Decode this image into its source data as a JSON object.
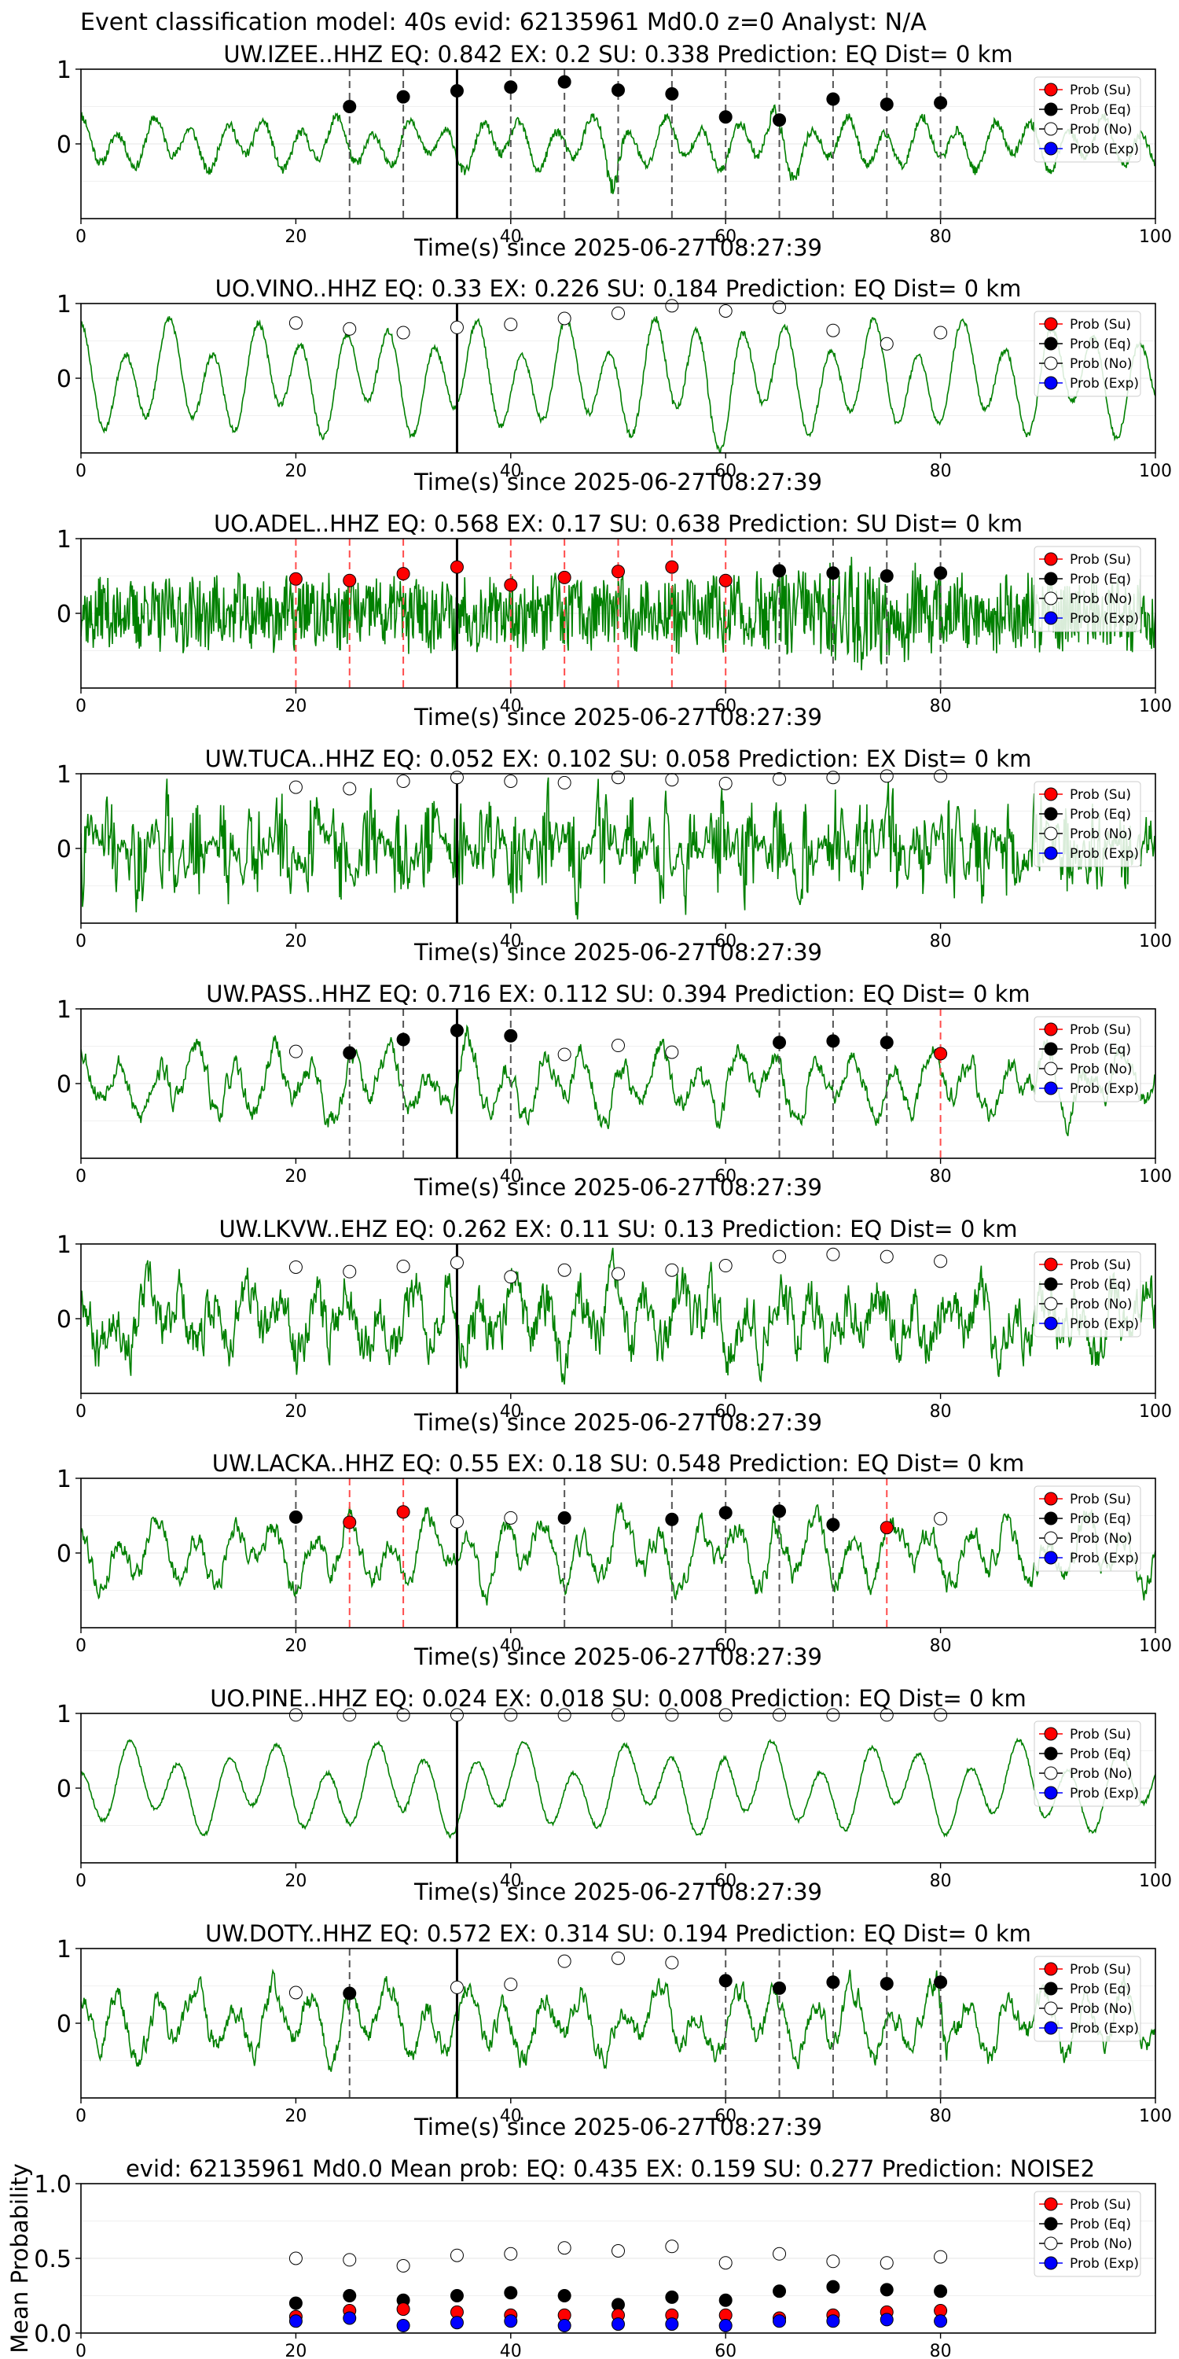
{
  "figure_title": "Event classification model: 40s evid: 62135961 Md0.0 z=0 Analyst: N/A",
  "colors": {
    "waveform": "#008000",
    "prob_su": "#ff0000",
    "prob_eq": "#000000",
    "prob_no": "#ffffff",
    "prob_exp": "#0000ff",
    "marker_eq_line": "#555555",
    "marker_su_line": "#ff4d4d",
    "event_line": "#000000"
  },
  "legend_entries": [
    "Prob (Su)",
    "Prob (Eq)",
    "Prob (No)",
    "Prob (Exp)"
  ],
  "chart_data": [
    {
      "type": "line",
      "title": "UW.IZEE..HHZ   EQ: 0.842  EX: 0.2  SU: 0.338   Prediction: EQ    Dist= 0 km",
      "xlabel": "Time(s) since 2025-06-27T08:27:39",
      "xlim": [
        0,
        100
      ],
      "ylim": [
        -1,
        1
      ],
      "xticks": [
        0,
        20,
        40,
        60,
        80,
        100
      ],
      "yticks": [
        0,
        1
      ],
      "event_time": 35,
      "waveform": {
        "seed": 11,
        "style": "lowfreq",
        "bursts": [
          [
            48,
            51,
            2.3
          ],
          [
            62,
            68,
            1.6
          ],
          [
            30,
            35,
            0.8
          ]
        ]
      },
      "series": [
        {
          "name": "Prob (Eq)",
          "x": [
            25,
            30,
            35,
            40,
            45,
            50,
            55,
            60,
            65,
            70,
            75,
            80
          ],
          "y": [
            0.5,
            0.63,
            0.71,
            0.76,
            0.83,
            0.72,
            0.67,
            0.36,
            0.32,
            0.6,
            0.53,
            0.55
          ]
        }
      ],
      "marker_lines": [
        {
          "x": 25,
          "cls": "EQ"
        },
        {
          "x": 30,
          "cls": "EQ"
        },
        {
          "x": 40,
          "cls": "EQ"
        },
        {
          "x": 45,
          "cls": "EQ"
        },
        {
          "x": 50,
          "cls": "EQ"
        },
        {
          "x": 55,
          "cls": "EQ"
        },
        {
          "x": 60,
          "cls": "EQ"
        },
        {
          "x": 65,
          "cls": "EQ"
        },
        {
          "x": 70,
          "cls": "EQ"
        },
        {
          "x": 75,
          "cls": "EQ"
        },
        {
          "x": 80,
          "cls": "EQ"
        }
      ]
    },
    {
      "type": "line",
      "title": "UO.VINO..HHZ   EQ: 0.33  EX: 0.226  SU: 0.184   Prediction: EQ    Dist= 0 km",
      "xlabel": "Time(s) since 2025-06-27T08:27:39",
      "xlim": [
        0,
        100
      ],
      "ylim": [
        -1,
        1
      ],
      "xticks": [
        0,
        20,
        40,
        60,
        80,
        100
      ],
      "yticks": [
        0,
        1
      ],
      "event_time": 35,
      "waveform": {
        "seed": 23,
        "style": "sine",
        "bursts": [
          [
            50,
            65,
            1.3
          ]
        ]
      },
      "series": [
        {
          "name": "Prob (No)",
          "x": [
            20,
            25,
            30,
            35,
            40,
            45,
            50,
            55,
            60,
            65,
            70,
            75,
            80
          ],
          "y": [
            0.74,
            0.66,
            0.61,
            0.68,
            0.72,
            0.8,
            0.87,
            0.97,
            0.9,
            0.95,
            0.64,
            0.46,
            0.61
          ]
        }
      ],
      "marker_lines": []
    },
    {
      "type": "line",
      "title": "UO.ADEL..HHZ   EQ: 0.568  EX: 0.17  SU: 0.638   Prediction: SU    Dist= 0 km",
      "xlabel": "Time(s) since 2025-06-27T08:27:39",
      "xlim": [
        0,
        100
      ],
      "ylim": [
        -1,
        1
      ],
      "xticks": [
        0,
        20,
        40,
        60,
        80,
        100
      ],
      "yticks": [
        0,
        1
      ],
      "event_time": 35,
      "waveform": {
        "seed": 37,
        "style": "noise",
        "bursts": [
          [
            62,
            82,
            1.6
          ]
        ]
      },
      "series": [
        {
          "name": "Prob (Su)",
          "x": [
            20,
            25,
            30,
            35,
            40,
            45,
            50,
            55,
            60
          ],
          "y": [
            0.46,
            0.44,
            0.53,
            0.62,
            0.38,
            0.48,
            0.56,
            0.62,
            0.44
          ]
        },
        {
          "name": "Prob (Eq)",
          "x": [
            65,
            70,
            75,
            80
          ],
          "y": [
            0.57,
            0.54,
            0.5,
            0.54
          ]
        }
      ],
      "marker_lines": [
        {
          "x": 20,
          "cls": "SU"
        },
        {
          "x": 25,
          "cls": "SU"
        },
        {
          "x": 30,
          "cls": "SU"
        },
        {
          "x": 35,
          "cls": "SU"
        },
        {
          "x": 40,
          "cls": "SU"
        },
        {
          "x": 45,
          "cls": "SU"
        },
        {
          "x": 50,
          "cls": "SU"
        },
        {
          "x": 55,
          "cls": "SU"
        },
        {
          "x": 60,
          "cls": "SU"
        },
        {
          "x": 65,
          "cls": "EQ"
        },
        {
          "x": 70,
          "cls": "EQ"
        },
        {
          "x": 75,
          "cls": "EQ"
        },
        {
          "x": 80,
          "cls": "EQ"
        }
      ]
    },
    {
      "type": "line",
      "title": "UW.TUCA..HHZ   EQ: 0.052  EX: 0.102  SU: 0.058   Prediction: EX    Dist= 0 km",
      "xlabel": "Time(s) since 2025-06-27T08:27:39",
      "xlim": [
        0,
        100
      ],
      "ylim": [
        -1,
        1
      ],
      "xticks": [
        0,
        20,
        40,
        60,
        80,
        100
      ],
      "yticks": [
        0,
        1
      ],
      "event_time": 35,
      "waveform": {
        "seed": 41,
        "style": "noise_heavy",
        "bursts": []
      },
      "series": [
        {
          "name": "Prob (No)",
          "x": [
            20,
            25,
            30,
            35,
            40,
            45,
            50,
            55,
            60,
            65,
            70,
            75,
            80
          ],
          "y": [
            0.82,
            0.8,
            0.9,
            0.95,
            0.9,
            0.88,
            0.95,
            0.92,
            0.87,
            0.93,
            0.95,
            0.97,
            0.97
          ]
        }
      ],
      "marker_lines": []
    },
    {
      "type": "line",
      "title": "UW.PASS..HHZ   EQ: 0.716  EX: 0.112  SU: 0.394   Prediction: EQ    Dist= 0 km",
      "xlabel": "Time(s) since 2025-06-27T08:27:39",
      "xlim": [
        0,
        100
      ],
      "ylim": [
        -1,
        1
      ],
      "xticks": [
        0,
        20,
        40,
        60,
        80,
        100
      ],
      "yticks": [
        0,
        1
      ],
      "event_time": 35,
      "waveform": {
        "seed": 53,
        "style": "mixed",
        "bursts": [
          [
            34,
            37,
            1.4
          ],
          [
            7,
            9,
            1.3
          ]
        ]
      },
      "series": [
        {
          "name": "Prob (No)",
          "x": [
            20,
            45,
            50,
            55
          ],
          "y": [
            0.43,
            0.39,
            0.51,
            0.42
          ]
        },
        {
          "name": "Prob (Eq)",
          "x": [
            25,
            30,
            35,
            40,
            65,
            70,
            75
          ],
          "y": [
            0.41,
            0.59,
            0.71,
            0.64,
            0.55,
            0.57,
            0.55
          ]
        },
        {
          "name": "Prob (Su)",
          "x": [
            80
          ],
          "y": [
            0.4
          ]
        }
      ],
      "marker_lines": [
        {
          "x": 25,
          "cls": "EQ"
        },
        {
          "x": 30,
          "cls": "EQ"
        },
        {
          "x": 35,
          "cls": "EQ"
        },
        {
          "x": 40,
          "cls": "EQ"
        },
        {
          "x": 65,
          "cls": "EQ"
        },
        {
          "x": 70,
          "cls": "EQ"
        },
        {
          "x": 75,
          "cls": "EQ"
        },
        {
          "x": 80,
          "cls": "SU"
        }
      ]
    },
    {
      "type": "line",
      "title": "UW.LKVW..EHZ   EQ: 0.262  EX: 0.11  SU: 0.13   Prediction: EQ    Dist= 0 km",
      "xlabel": "Time(s) since 2025-06-27T08:27:39",
      "xlim": [
        0,
        100
      ],
      "ylim": [
        -1,
        1
      ],
      "xticks": [
        0,
        20,
        40,
        60,
        80,
        100
      ],
      "yticks": [
        0,
        1
      ],
      "event_time": 35,
      "waveform": {
        "seed": 67,
        "style": "mixed_heavy",
        "bursts": []
      },
      "series": [
        {
          "name": "Prob (No)",
          "x": [
            20,
            25,
            30,
            35,
            40,
            45,
            50,
            55,
            60,
            65,
            70,
            75,
            80
          ],
          "y": [
            0.69,
            0.63,
            0.7,
            0.75,
            0.56,
            0.65,
            0.6,
            0.65,
            0.71,
            0.83,
            0.86,
            0.83,
            0.77
          ]
        }
      ],
      "marker_lines": []
    },
    {
      "type": "line",
      "title": "UW.LACKA..HHZ   EQ: 0.55  EX: 0.18  SU: 0.548   Prediction: EQ    Dist= 0 km",
      "xlabel": "Time(s) since 2025-06-27T08:27:39",
      "xlim": [
        0,
        100
      ],
      "ylim": [
        -1,
        1
      ],
      "xticks": [
        0,
        20,
        40,
        60,
        80,
        100
      ],
      "yticks": [
        0,
        1
      ],
      "event_time": 35,
      "waveform": {
        "seed": 79,
        "style": "mixed",
        "bursts": [
          [
            63,
            67,
            1.5
          ]
        ]
      },
      "series": [
        {
          "name": "Prob (Eq)",
          "x": [
            20,
            45,
            55,
            60,
            65,
            70
          ],
          "y": [
            0.48,
            0.47,
            0.45,
            0.54,
            0.56,
            0.38
          ]
        },
        {
          "name": "Prob (Su)",
          "x": [
            25,
            30,
            75
          ],
          "y": [
            0.41,
            0.55,
            0.34
          ]
        },
        {
          "name": "Prob (No)",
          "x": [
            35,
            40,
            80
          ],
          "y": [
            0.42,
            0.47,
            0.46
          ]
        }
      ],
      "marker_lines": [
        {
          "x": 20,
          "cls": "EQ"
        },
        {
          "x": 25,
          "cls": "SU"
        },
        {
          "x": 30,
          "cls": "SU"
        },
        {
          "x": 45,
          "cls": "EQ"
        },
        {
          "x": 55,
          "cls": "EQ"
        },
        {
          "x": 60,
          "cls": "EQ"
        },
        {
          "x": 65,
          "cls": "EQ"
        },
        {
          "x": 70,
          "cls": "EQ"
        },
        {
          "x": 75,
          "cls": "SU"
        }
      ]
    },
    {
      "type": "line",
      "title": "UO.PINE..HHZ   EQ: 0.024  EX: 0.018  SU: 0.008   Prediction: EQ    Dist= 0 km",
      "xlabel": "Time(s) since 2025-06-27T08:27:39",
      "xlim": [
        0,
        100
      ],
      "ylim": [
        -1,
        1
      ],
      "xticks": [
        0,
        20,
        40,
        60,
        80,
        100
      ],
      "yticks": [
        0,
        1
      ],
      "event_time": 35,
      "waveform": {
        "seed": 83,
        "style": "sine_slow",
        "bursts": [
          [
            29,
            32,
            1.3
          ],
          [
            58,
            62,
            1.3
          ]
        ]
      },
      "series": [
        {
          "name": "Prob (No)",
          "x": [
            20,
            25,
            30,
            35,
            40,
            45,
            50,
            55,
            60,
            65,
            70,
            75,
            80
          ],
          "y": [
            0.98,
            0.98,
            0.98,
            0.98,
            0.98,
            0.98,
            0.98,
            0.98,
            0.98,
            0.98,
            0.98,
            0.98,
            0.98
          ]
        }
      ],
      "marker_lines": []
    },
    {
      "type": "line",
      "title": "UW.DOTY..HHZ   EQ: 0.572  EX: 0.314  SU: 0.194   Prediction: EQ    Dist= 0 km",
      "xlabel": "Time(s) since 2025-06-27T08:27:39",
      "xlim": [
        0,
        100
      ],
      "ylim": [
        -1,
        1
      ],
      "xticks": [
        0,
        20,
        40,
        60,
        80,
        100
      ],
      "yticks": [
        0,
        1
      ],
      "event_time": 35,
      "waveform": {
        "seed": 97,
        "style": "mixed",
        "bursts": [
          [
            79,
            82,
            1.8
          ]
        ]
      },
      "series": [
        {
          "name": "Prob (No)",
          "x": [
            20,
            35,
            40,
            45,
            50,
            55
          ],
          "y": [
            0.41,
            0.48,
            0.52,
            0.83,
            0.87,
            0.81
          ]
        },
        {
          "name": "Prob (Eq)",
          "x": [
            25,
            60,
            65,
            70,
            75,
            80
          ],
          "y": [
            0.4,
            0.57,
            0.47,
            0.55,
            0.53,
            0.55
          ]
        }
      ],
      "marker_lines": [
        {
          "x": 25,
          "cls": "EQ"
        },
        {
          "x": 60,
          "cls": "EQ"
        },
        {
          "x": 65,
          "cls": "EQ"
        },
        {
          "x": 70,
          "cls": "EQ"
        },
        {
          "x": 75,
          "cls": "EQ"
        },
        {
          "x": 80,
          "cls": "EQ"
        }
      ]
    },
    {
      "type": "scatter",
      "title": "evid: 62135961  Md0.0   Mean prob:   EQ: 0.435  EX: 0.159  SU: 0.277   Prediction: NOISE2",
      "xlabel": "",
      "ylabel": "Mean Probability",
      "xlim": [
        0,
        100
      ],
      "ylim": [
        0,
        1
      ],
      "xticks": [
        0,
        20,
        40,
        60,
        80
      ],
      "yticks": [
        0.0,
        0.5,
        1.0
      ],
      "ytick_labels": [
        "0.0",
        "0.5",
        "1.0"
      ],
      "x": [
        20,
        25,
        30,
        35,
        40,
        45,
        50,
        55,
        60,
        65,
        70,
        75,
        80
      ],
      "series": [
        {
          "name": "Prob (No)",
          "values": [
            0.5,
            0.49,
            0.45,
            0.52,
            0.53,
            0.57,
            0.55,
            0.58,
            0.47,
            0.53,
            0.48,
            0.47,
            0.51
          ]
        },
        {
          "name": "Prob (Eq)",
          "values": [
            0.2,
            0.25,
            0.22,
            0.25,
            0.27,
            0.25,
            0.19,
            0.24,
            0.22,
            0.28,
            0.31,
            0.29,
            0.28
          ]
        },
        {
          "name": "Prob (Su)",
          "values": [
            0.11,
            0.15,
            0.16,
            0.14,
            0.12,
            0.12,
            0.12,
            0.12,
            0.12,
            0.1,
            0.12,
            0.14,
            0.15
          ]
        },
        {
          "name": "Prob (Exp)",
          "values": [
            0.08,
            0.1,
            0.05,
            0.07,
            0.08,
            0.05,
            0.06,
            0.06,
            0.05,
            0.08,
            0.08,
            0.09,
            0.08
          ]
        }
      ]
    }
  ]
}
